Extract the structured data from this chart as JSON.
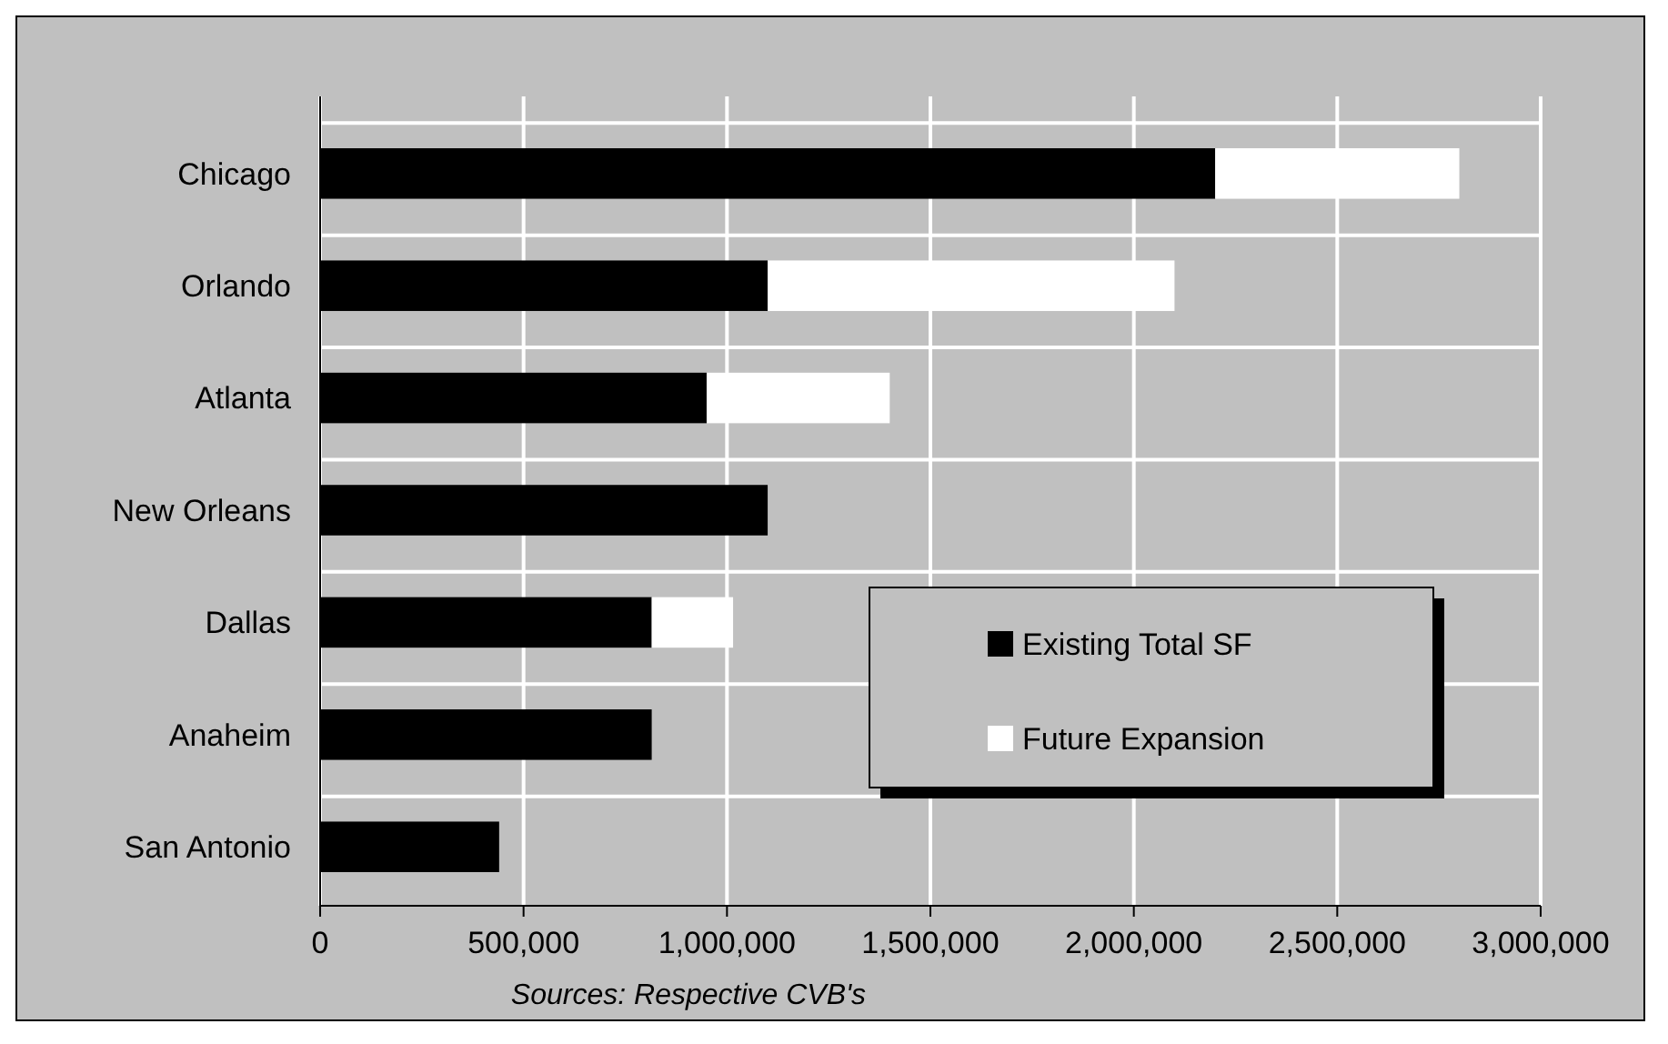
{
  "chart_data": {
    "type": "bar",
    "orientation": "horizontal",
    "stacked": true,
    "categories": [
      "Chicago",
      "Orlando",
      "Atlanta",
      "New Orleans",
      "Dallas",
      "Anaheim",
      "San Antonio"
    ],
    "series": [
      {
        "name": "Existing Total SF",
        "color": "#000000",
        "values": [
          2200000,
          1100000,
          950000,
          1100000,
          815000,
          815000,
          440000
        ]
      },
      {
        "name": "Future Expansion",
        "color": "#ffffff",
        "values": [
          600000,
          1000000,
          450000,
          null,
          200000,
          null,
          null
        ]
      }
    ],
    "xlim": [
      0,
      3000000
    ],
    "xticks": [
      {
        "value": 0,
        "label": "0"
      },
      {
        "value": 500000,
        "label": "500,000"
      },
      {
        "value": 1000000,
        "label": "1,000,000"
      },
      {
        "value": 1500000,
        "label": "1,500,000"
      },
      {
        "value": 2000000,
        "label": "2,000,000"
      },
      {
        "value": 2500000,
        "label": "2,500,000"
      },
      {
        "value": 3000000,
        "label": "3,000,000"
      }
    ],
    "grid": true,
    "legend": "bottom right",
    "annotations": [
      "Sources:  Respective CVB's"
    ]
  }
}
